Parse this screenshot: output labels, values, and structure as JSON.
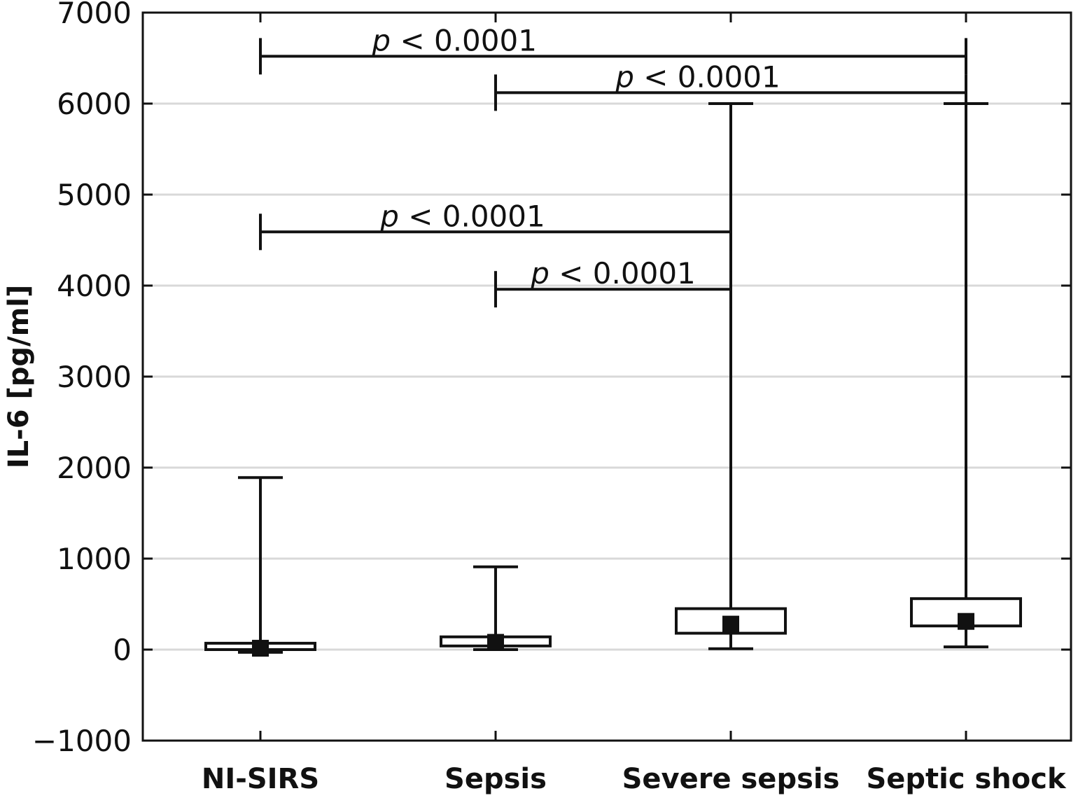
{
  "chart_data": {
    "type": "box",
    "title": "",
    "xlabel": "",
    "ylabel": "IL-6 [pg/ml]",
    "ylim": [
      -1000,
      7000
    ],
    "yticks": [
      -1000,
      0,
      1000,
      2000,
      3000,
      4000,
      5000,
      6000,
      7000
    ],
    "ytick_labels": [
      "−1000",
      "0",
      "1000",
      "2000",
      "3000",
      "4000",
      "5000",
      "6000",
      "7000"
    ],
    "grid": "horizontal",
    "categories": [
      "NI-SIRS",
      "Sepsis",
      "Severe sepsis",
      "Septic shock"
    ],
    "boxes": [
      {
        "category": "NI-SIRS",
        "whisker_low": -30,
        "q1": 0,
        "median": 15,
        "q3": 70,
        "whisker_high": 1890
      },
      {
        "category": "Sepsis",
        "whisker_low": 0,
        "q1": 40,
        "median": 80,
        "q3": 140,
        "whisker_high": 910
      },
      {
        "category": "Severe sepsis",
        "whisker_low": 10,
        "q1": 180,
        "median": 280,
        "q3": 450,
        "whisker_high": 6000
      },
      {
        "category": "Septic shock",
        "whisker_low": 30,
        "q1": 260,
        "median": 310,
        "q3": 560,
        "whisker_high": 6000
      }
    ],
    "comparisons": [
      {
        "from": "NI-SIRS",
        "to": "Septic shock",
        "y": 6520,
        "p_symbol": "p",
        "p_text": " < 0.0001"
      },
      {
        "from": "Sepsis",
        "to": "Septic shock",
        "y": 6120,
        "p_symbol": "p",
        "p_text": " < 0.0001"
      },
      {
        "from": "NI-SIRS",
        "to": "Severe sepsis",
        "y": 4590,
        "p_symbol": "p",
        "p_text": " < 0.0001"
      },
      {
        "from": "Sepsis",
        "to": "Severe sepsis",
        "y": 3960,
        "p_symbol": "p",
        "p_text": " < 0.0001"
      }
    ],
    "colors": {
      "line": "#111111",
      "box_fill": "#ffffff",
      "grid": "#d9d9d9",
      "median_marker": "#111111"
    }
  }
}
